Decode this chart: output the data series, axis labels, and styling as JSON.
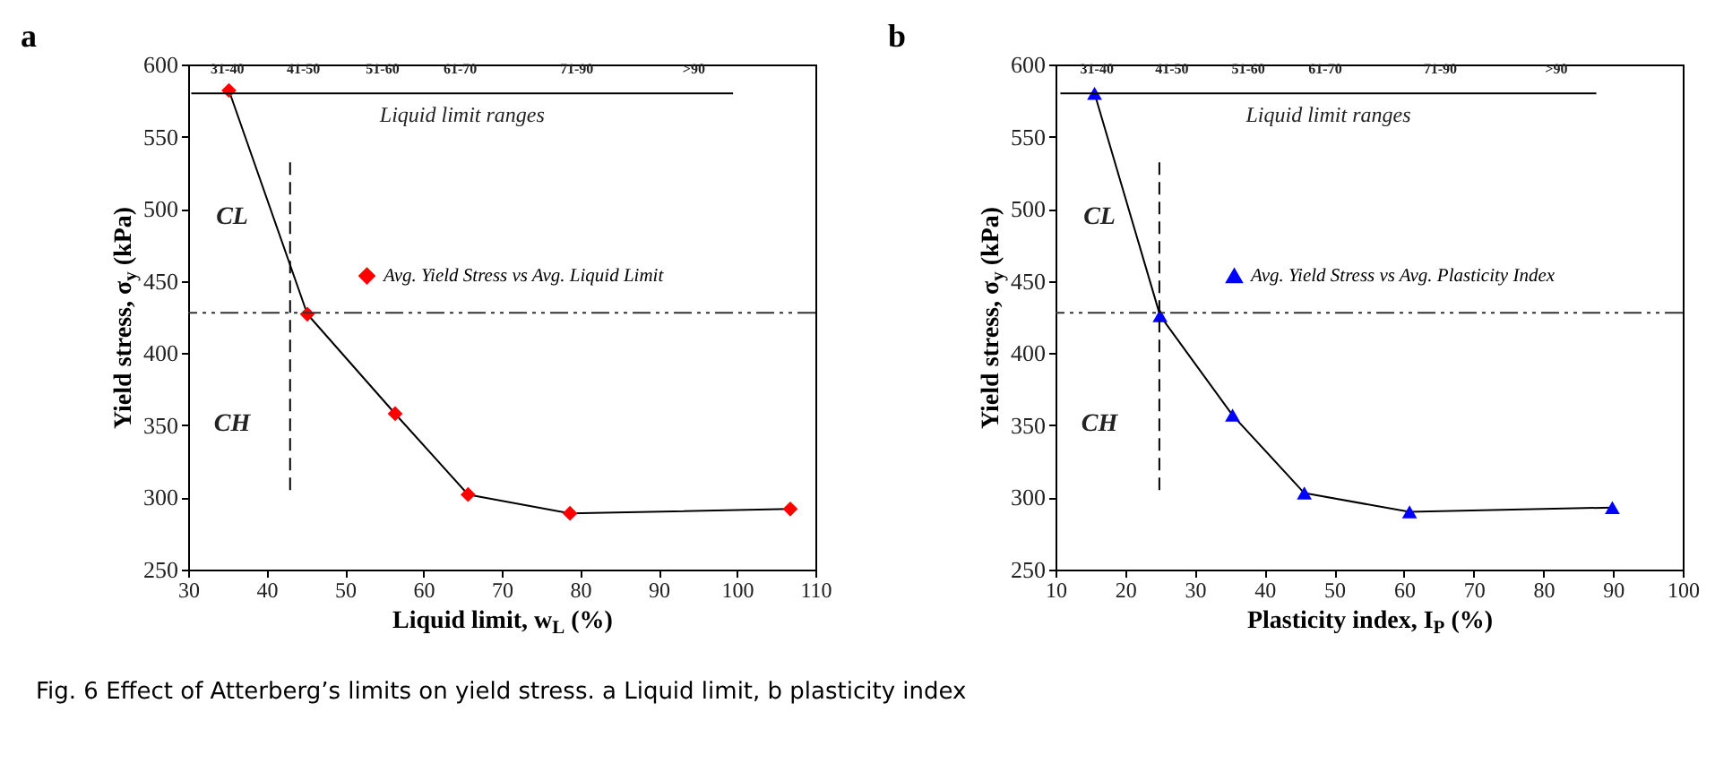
{
  "chart_data": [
    {
      "type": "line",
      "title": "a",
      "xlabel": "Liquid limit, w$_{L}$ (%)",
      "ylabel": "Yield stress, σ$_{y}$ (kPa)",
      "xlim": [
        30,
        110
      ],
      "xticks": [
        30,
        40,
        50,
        60,
        70,
        80,
        90,
        100,
        110
      ],
      "ylim": [
        250,
        600
      ],
      "yticks": [
        250,
        300,
        350,
        400,
        450,
        500,
        550,
        600
      ],
      "marker": "diamond",
      "legend": "right",
      "series": [
        {
          "name": "Avg. Yield Stress vs Avg. Liquid Limit",
          "color": "#ff0000",
          "x": [
            35.2,
            45.2,
            56.4,
            65.7,
            78.7,
            106.8
          ],
          "values": [
            582,
            427,
            358,
            302,
            289,
            292
          ]
        },
        {
          "color": "#000000",
          "marker": "none",
          "line_style": "dashed",
          "x": [
            43,
            43
          ],
          "values": [
            305,
            535
          ]
        },
        {
          "color": "#000000",
          "marker": "none",
          "x": [
            30.4,
            39.6,
            49.8,
            59.8,
            69.6,
            89.5,
            99.5
          ],
          "values": [
            580,
            580,
            580,
            580,
            580,
            580,
            580
          ]
        }
      ],
      "ref_lines": [
        {
          "axis": "y",
          "value": 428,
          "line_style": "dashed",
          "color": "#333333"
        }
      ],
      "annotations": [
        "31-40",
        "41-50",
        "51-60",
        "61-70",
        "71-90",
        ">90",
        "Liquid limit ranges",
        "CL",
        "CH",
        "Fig. 6  Effect of Atterberg’s limits on yield stress. a Liquid limit, b plasticity index"
      ]
    },
    {
      "type": "line",
      "title": "b",
      "xlabel": "Plasticity index, I$_{P}$ (%)",
      "ylabel": "Yield stress, σ$_{y}$ (kPa)",
      "xlim": [
        10,
        100
      ],
      "xticks": [
        10,
        20,
        30,
        40,
        50,
        60,
        70,
        80,
        90,
        100
      ],
      "ylim": [
        250,
        600
      ],
      "yticks": [
        250,
        300,
        350,
        400,
        450,
        500,
        550,
        600
      ],
      "marker": "triangle",
      "legend": "right",
      "series": [
        {
          "name": "Avg. Yield Stress vs Avg. Plasticity Index",
          "color": "#0000ff",
          "x": [
            15.6,
            25,
            35.4,
            45.7,
            60.8,
            89.9
          ],
          "values": [
            580,
            426,
            357,
            303,
            290,
            293
          ]
        },
        {
          "color": "#000000",
          "marker": "none",
          "line_style": "dashed",
          "x": [
            24.9,
            24.9
          ],
          "values": [
            305,
            535
          ]
        },
        {
          "color": "#000000",
          "marker": "none",
          "x": [
            10.7,
            21.2,
            32.2,
            43.1,
            54.3,
            76.1,
            87.6
          ],
          "values": [
            580,
            580,
            580,
            580,
            580,
            580,
            580
          ]
        }
      ],
      "ref_lines": [
        {
          "axis": "y",
          "value": 428,
          "line_style": "dashed",
          "color": "#333333"
        }
      ],
      "annotations": [
        "31-40",
        "41-50",
        "51-60",
        "61-70",
        "71-90",
        ">90",
        "Liquid limit ranges",
        "CL",
        "CH"
      ]
    }
  ]
}
